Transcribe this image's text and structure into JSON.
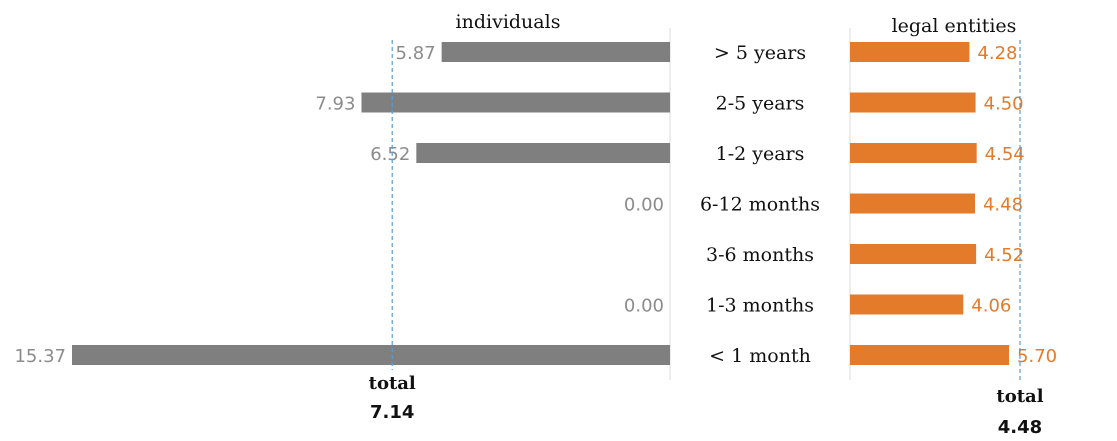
{
  "chart_data": {
    "type": "bar",
    "orientation": "horizontal",
    "categories": [
      "> 5 years",
      "2-5 years",
      "1-2 years",
      "6-12 months",
      "3-6 months",
      "1-3 months",
      "< 1 month"
    ],
    "series": [
      {
        "name": "individuals",
        "values": [
          "5.87",
          "7.93",
          "6.52",
          "0.00",
          null,
          "0.00",
          "15.37"
        ],
        "color": "#7f7f7f",
        "label_color": "#8c8c8c",
        "total_label": "total",
        "total_value": "7.14",
        "reference": 7.14
      },
      {
        "name": "legal entities",
        "values": [
          "4.28",
          "4.50",
          "4.54",
          "4.48",
          "4.52",
          "4.06",
          "5.70"
        ],
        "color": "#e37b2a",
        "label_color": "#e37b2a",
        "total_label": "total",
        "total_value": "4.48",
        "reference": 4.48
      }
    ],
    "reference_line_color": "#5b9bd5",
    "grid": false
  }
}
